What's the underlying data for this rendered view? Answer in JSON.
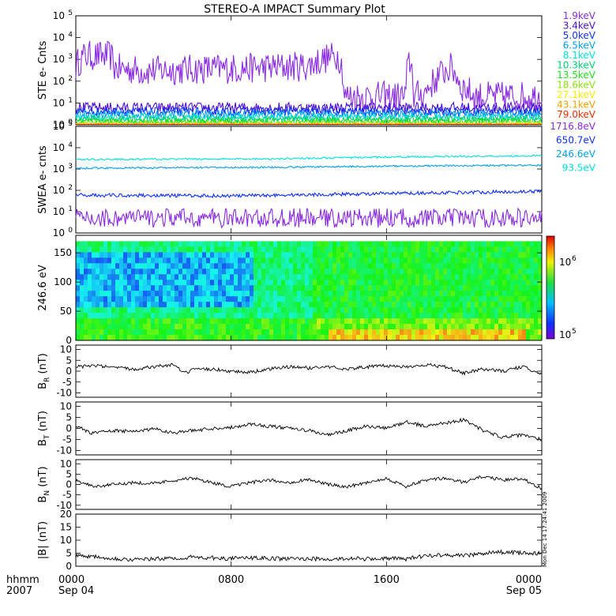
{
  "title": "STEREO-A IMPACT Summary Plot",
  "time_axis": {
    "corner_top": "hhmm",
    "corner_bottom": "2007",
    "ticks": [
      {
        "label": "0000",
        "sub": "Sep 04",
        "hour": 0
      },
      {
        "label": "0800",
        "sub": "",
        "hour": 8
      },
      {
        "label": "1600",
        "sub": "",
        "hour": 16
      },
      {
        "label": "0000",
        "sub": "Sep 05",
        "hour": 24
      }
    ]
  },
  "timestamp": "Mon Dec 14 17:24:41 2009",
  "chart_data": [
    {
      "type": "line",
      "panel": "ste",
      "ylabel": "STE e- Cnts",
      "yscale": "log",
      "ylim": [
        1,
        100000
      ],
      "yticks": [
        {
          "value": 1,
          "base": "10",
          "exp": "0"
        },
        {
          "value": 10,
          "base": "10",
          "exp": "1"
        },
        {
          "value": 100,
          "base": "10",
          "exp": "2"
        },
        {
          "value": 1000,
          "base": "10",
          "exp": "3"
        },
        {
          "value": 10000,
          "base": "10",
          "exp": "4"
        },
        {
          "value": 100000,
          "base": "10",
          "exp": "5"
        }
      ],
      "series": [
        {
          "name": "1.9keV",
          "color": "#8a2be2",
          "values": [
            [
              0,
              500
            ],
            [
              0.5,
              1500
            ],
            [
              1.8,
              1400
            ],
            [
              2.0,
              400
            ],
            [
              3.5,
              300
            ],
            [
              6.0,
              350
            ],
            [
              9.0,
              400
            ],
            [
              12.0,
              500
            ],
            [
              13.5,
              1500
            ],
            [
              13.8,
              20
            ],
            [
              17.0,
              20
            ],
            [
              17.2,
              800
            ],
            [
              17.4,
              20
            ],
            [
              18.0,
              30
            ],
            [
              18.5,
              100
            ],
            [
              19.3,
              400
            ],
            [
              19.8,
              60
            ],
            [
              20.5,
              20
            ],
            [
              24,
              20
            ]
          ],
          "noise": 0.7
        },
        {
          "name": "3.4keV",
          "color": "#4b0fd0",
          "values": [
            [
              0,
              6
            ],
            [
              24,
              6
            ]
          ],
          "noise": 0.25
        },
        {
          "name": "5.0keV",
          "color": "#1030ff",
          "values": [
            [
              0,
              4
            ],
            [
              24,
              4
            ]
          ],
          "noise": 0.2
        },
        {
          "name": "6.5keV",
          "color": "#00a0f0",
          "values": [
            [
              0,
              3
            ],
            [
              24,
              3
            ]
          ],
          "noise": 0.2
        },
        {
          "name": "8.1keV",
          "color": "#00e0e0",
          "values": [
            [
              0,
              2.2
            ],
            [
              24,
              2.2
            ]
          ],
          "noise": 0.15
        },
        {
          "name": "10.3keV",
          "color": "#00d070",
          "values": [
            [
              0,
              1.8
            ],
            [
              24,
              1.8
            ]
          ],
          "noise": 0.15
        },
        {
          "name": "13.5keV",
          "color": "#20e020",
          "values": [
            [
              0,
              1.4
            ],
            [
              24,
              1.4
            ]
          ],
          "noise": 0.15
        },
        {
          "name": "18.6keV",
          "color": "#90e010",
          "values": [
            [
              0,
              1.2
            ],
            [
              24,
              1.2
            ]
          ],
          "noise": 0.1
        },
        {
          "name": "27.1keV",
          "color": "#f0f000",
          "values": [
            [
              0,
              1.1
            ],
            [
              24,
              1.1
            ]
          ],
          "noise": 0.05
        },
        {
          "name": "43.1keV",
          "color": "#f0a000",
          "values": [
            [
              0,
              1.05
            ],
            [
              24,
              1.05
            ]
          ],
          "noise": 0.03
        },
        {
          "name": "79.0keV",
          "color": "#f03000",
          "values": [
            [
              0,
              1.02
            ],
            [
              24,
              1.02
            ]
          ],
          "noise": 0.02
        }
      ]
    },
    {
      "type": "line",
      "panel": "swea",
      "ylabel": "SWEA e- cnts",
      "yscale": "log",
      "ylim": [
        1,
        100000
      ],
      "yticks": [
        {
          "value": 1,
          "base": "10",
          "exp": "0"
        },
        {
          "value": 10,
          "base": "10",
          "exp": "1"
        },
        {
          "value": 100,
          "base": "10",
          "exp": "2"
        },
        {
          "value": 1000,
          "base": "10",
          "exp": "3"
        },
        {
          "value": 10000,
          "base": "10",
          "exp": "4"
        },
        {
          "value": 100000,
          "base": "10",
          "exp": "5"
        }
      ],
      "series": [
        {
          "name": "1716.8eV",
          "color": "#8a2be2",
          "values": [
            [
              0,
              5
            ],
            [
              24,
              5
            ]
          ],
          "noise": 0.45
        },
        {
          "name": "650.7eV",
          "color": "#1030ff",
          "values": [
            [
              0,
              60
            ],
            [
              8,
              55
            ],
            [
              16,
              70
            ],
            [
              24,
              90
            ]
          ],
          "noise": 0.08
        },
        {
          "name": "246.6eV",
          "color": "#00a0f0",
          "values": [
            [
              0,
              1100
            ],
            [
              10,
              1200
            ],
            [
              18,
              1400
            ],
            [
              24,
              1500
            ]
          ],
          "noise": 0.04
        },
        {
          "name": "93.5eV",
          "color": "#00e0e0",
          "values": [
            [
              0,
              2800
            ],
            [
              10,
              3000
            ],
            [
              18,
              3800
            ],
            [
              24,
              4200
            ]
          ],
          "noise": 0.04
        }
      ]
    },
    {
      "type": "heatmap",
      "panel": "pad",
      "ylabel": "246.6 eV",
      "ylim": [
        0,
        180
      ],
      "yticks": [
        0,
        50,
        100,
        150
      ],
      "colorbar": {
        "min_exp": 5,
        "max_exp": 6,
        "labels": [
          {
            "base": "10",
            "exp": "5",
            "value": 5
          },
          {
            "base": "10",
            "exp": "6",
            "value": 6
          }
        ]
      }
    },
    {
      "type": "line",
      "panel": "br",
      "ylabel_main": "B",
      "ylabel_sub": "R",
      "ylabel_unit": "(nT)",
      "ylim": [
        -12,
        12
      ],
      "yticks": [
        -10,
        -5,
        0,
        5,
        10
      ],
      "values": [
        [
          0,
          2
        ],
        [
          1,
          2.5
        ],
        [
          2,
          1.5
        ],
        [
          3,
          1
        ],
        [
          4,
          2
        ],
        [
          5,
          3
        ],
        [
          5.6,
          -1
        ],
        [
          6,
          0.5
        ],
        [
          7,
          1
        ],
        [
          8,
          0
        ],
        [
          9,
          -0.5
        ],
        [
          10,
          1
        ],
        [
          11,
          2
        ],
        [
          12,
          1.5
        ],
        [
          13,
          2
        ],
        [
          14,
          1
        ],
        [
          15,
          2
        ],
        [
          16,
          2.5
        ],
        [
          17,
          2
        ],
        [
          18,
          3
        ],
        [
          19,
          2
        ],
        [
          20,
          -1
        ],
        [
          21,
          1
        ],
        [
          22,
          0
        ],
        [
          23,
          2
        ],
        [
          24,
          -1
        ]
      ]
    },
    {
      "type": "line",
      "panel": "bt",
      "ylabel_main": "B",
      "ylabel_sub": "T",
      "ylabel_unit": "(nT)",
      "ylim": [
        -12,
        12
      ],
      "yticks": [
        -10,
        -5,
        0,
        5,
        10
      ],
      "values": [
        [
          0,
          1
        ],
        [
          0.8,
          -2
        ],
        [
          2,
          -1
        ],
        [
          3,
          -1.5
        ],
        [
          4,
          0
        ],
        [
          5,
          -2
        ],
        [
          6,
          -1
        ],
        [
          7,
          0
        ],
        [
          8,
          0.5
        ],
        [
          9,
          2
        ],
        [
          10,
          1
        ],
        [
          11,
          0
        ],
        [
          12,
          -1
        ],
        [
          13,
          -3
        ],
        [
          14,
          -1
        ],
        [
          15,
          1
        ],
        [
          16,
          0
        ],
        [
          17,
          3
        ],
        [
          18,
          1
        ],
        [
          19,
          2.5
        ],
        [
          20,
          4
        ],
        [
          21,
          -1
        ],
        [
          22,
          -4
        ],
        [
          23,
          -3
        ],
        [
          24,
          -5
        ]
      ]
    },
    {
      "type": "line",
      "panel": "bn",
      "ylabel_main": "B",
      "ylabel_sub": "N",
      "ylabel_unit": "(nT)",
      "ylim": [
        -12,
        12
      ],
      "yticks": [
        -10,
        -5,
        0,
        5,
        10
      ],
      "values": [
        [
          0,
          2
        ],
        [
          1,
          -1
        ],
        [
          2,
          0
        ],
        [
          3,
          1
        ],
        [
          4,
          0.5
        ],
        [
          5,
          2
        ],
        [
          6,
          3
        ],
        [
          7,
          1
        ],
        [
          8,
          -1
        ],
        [
          9,
          1
        ],
        [
          10,
          2
        ],
        [
          11,
          1
        ],
        [
          12,
          2.5
        ],
        [
          13,
          0
        ],
        [
          14,
          -1
        ],
        [
          15,
          1
        ],
        [
          16,
          3
        ],
        [
          17,
          -1
        ],
        [
          18,
          2
        ],
        [
          19,
          3
        ],
        [
          20,
          1
        ],
        [
          21,
          4
        ],
        [
          22,
          2
        ],
        [
          23,
          3
        ],
        [
          24,
          -2
        ]
      ]
    },
    {
      "type": "line",
      "panel": "bmag",
      "ylabel_main": "|B|",
      "ylabel_unit": "(nT)",
      "ylim": [
        0,
        20
      ],
      "yticks": [
        0,
        5,
        10,
        15,
        20
      ],
      "values": [
        [
          0,
          4
        ],
        [
          1,
          3.8
        ],
        [
          2,
          3
        ],
        [
          3,
          2.5
        ],
        [
          4,
          2.8
        ],
        [
          5,
          3
        ],
        [
          6,
          3.5
        ],
        [
          7,
          3.2
        ],
        [
          8,
          3
        ],
        [
          9,
          3.2
        ],
        [
          10,
          3
        ],
        [
          11,
          2.8
        ],
        [
          12,
          3
        ],
        [
          13,
          2.5
        ],
        [
          14,
          3
        ],
        [
          15,
          2.8
        ],
        [
          16,
          3
        ],
        [
          17,
          2.8
        ],
        [
          18,
          4
        ],
        [
          19,
          4.5
        ],
        [
          20,
          4
        ],
        [
          21,
          5
        ],
        [
          22,
          5.5
        ],
        [
          23,
          5
        ],
        [
          24,
          5
        ]
      ]
    }
  ]
}
